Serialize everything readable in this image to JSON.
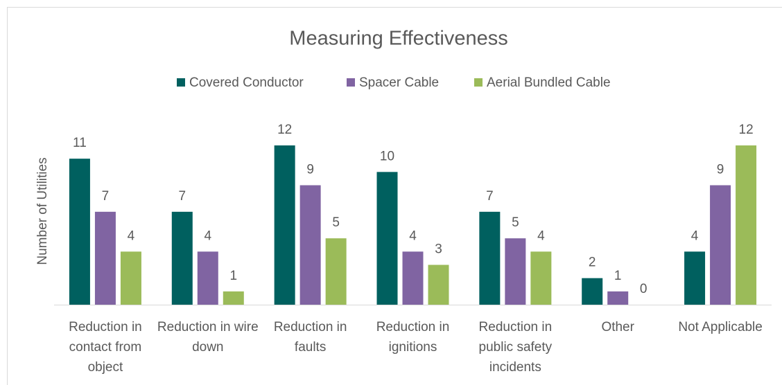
{
  "chart_data": {
    "type": "bar",
    "title": "Measuring Effectiveness",
    "y_label": "Number of Utilities",
    "categories": [
      "Reduction in contact from object",
      "Reduction in wire down",
      "Reduction in faults",
      "Reduction in ignitions",
      "Reduction in public safety incidents",
      "Other",
      "Not Applicable"
    ],
    "series": [
      {
        "name": "Covered Conductor",
        "color": "#00605f",
        "values": [
          11,
          7,
          12,
          10,
          7,
          2,
          4
        ]
      },
      {
        "name": "Spacer Cable",
        "color": "#8064a2",
        "values": [
          7,
          4,
          9,
          4,
          5,
          1,
          9
        ]
      },
      {
        "name": "Aerial Bundled Cable",
        "color": "#9bbb59",
        "values": [
          4,
          1,
          5,
          3,
          4,
          0,
          12
        ]
      }
    ],
    "ylim": [
      0,
      12
    ],
    "legend": "top"
  }
}
